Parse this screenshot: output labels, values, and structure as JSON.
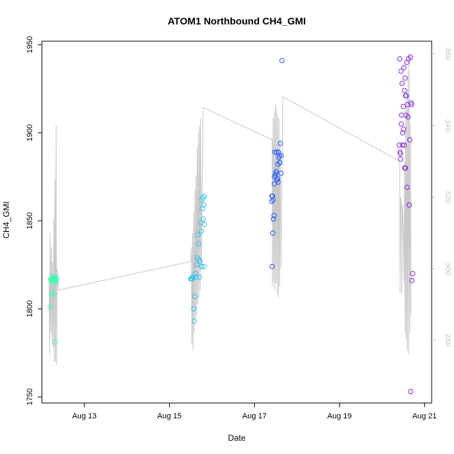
{
  "chart_data": {
    "type": "scatter",
    "title": "ATOM1 Northbound CH4_GMI",
    "xlabel": "Date",
    "ylabel": "CH4_GMI",
    "xlim": [
      "2016-08-12T00:00",
      "2016-08-21T04:00"
    ],
    "ylim": [
      1746.5,
      1952
    ],
    "y2lim": [
      262.5,
      363.5
    ],
    "x_ticks": [
      {
        "label": "Aug 13",
        "value": "2016-08-13T00:00"
      },
      {
        "label": "Aug 15",
        "value": "2016-08-15T00:00"
      },
      {
        "label": "Aug 17",
        "value": "2016-08-17T00:00"
      },
      {
        "label": "Aug 19",
        "value": "2016-08-19T00:00"
      },
      {
        "label": "Aug 21",
        "value": "2016-08-21T00:00"
      }
    ],
    "y_ticks": [
      1750,
      1800,
      1850,
      1900,
      1950
    ],
    "y2_ticks": [
      280,
      300,
      320,
      340,
      360
    ],
    "colors": {
      "secondary_line": "#c8c8c8",
      "right_axis": "#c8c8c8",
      "axis": "#000000",
      "flight1_points": "#33ffb0",
      "flight2_points": "#33bff0",
      "flight3_points": "#2a5cff",
      "flight4_points": "#8a2be2"
    },
    "series": [
      {
        "role": "points",
        "axis": "left",
        "marker": "open-circle",
        "groups": [
          {
            "color": "#33ffb0",
            "points": [
              [
                "2016-08-12T05:00",
                1817
              ],
              [
                "2016-08-12T05:20",
                1816
              ],
              [
                "2016-08-12T05:40",
                1817
              ],
              [
                "2016-08-12T06:00",
                1815
              ],
              [
                "2016-08-12T06:20",
                1818
              ],
              [
                "2016-08-12T06:40",
                1816
              ],
              [
                "2016-08-12T07:00",
                1817
              ],
              [
                "2016-08-12T04:40",
                1801
              ],
              [
                "2016-08-12T05:30",
                1808
              ],
              [
                "2016-08-12T06:10",
                1809
              ],
              [
                "2016-08-12T07:20",
                1818
              ],
              [
                "2016-08-12T07:40",
                1816
              ],
              [
                "2016-08-12T08:00",
                1815
              ],
              [
                "2016-08-12T08:20",
                1817
              ],
              [
                "2016-08-12T07:10",
                1781
              ],
              [
                "2016-08-12T06:50",
                1817
              ]
            ]
          },
          {
            "color": "#33bff0",
            "points": [
              [
                "2016-08-15T12:00",
                1817
              ],
              [
                "2016-08-15T12:20",
                1817
              ],
              [
                "2016-08-15T12:40",
                1817
              ],
              [
                "2016-08-15T13:00",
                1818
              ],
              [
                "2016-08-15T13:20",
                1818
              ],
              [
                "2016-08-15T13:40",
                1800
              ],
              [
                "2016-08-15T14:00",
                1793
              ],
              [
                "2016-08-15T14:20",
                1807
              ],
              [
                "2016-08-15T14:40",
                1820
              ],
              [
                "2016-08-15T15:00",
                1818
              ],
              [
                "2016-08-15T15:20",
                1825
              ],
              [
                "2016-08-15T15:40",
                1829
              ],
              [
                "2016-08-15T16:00",
                1842
              ],
              [
                "2016-08-15T16:20",
                1837
              ],
              [
                "2016-08-15T16:40",
                1828
              ],
              [
                "2016-08-15T17:00",
                1818
              ],
              [
                "2016-08-15T17:20",
                1827
              ],
              [
                "2016-08-15T17:40",
                1849
              ],
              [
                "2016-08-15T18:00",
                1844
              ],
              [
                "2016-08-15T18:20",
                1862
              ],
              [
                "2016-08-15T18:40",
                1857
              ],
              [
                "2016-08-15T19:00",
                1863
              ],
              [
                "2016-08-15T19:10",
                1851
              ],
              [
                "2016-08-15T19:20",
                1859
              ],
              [
                "2016-08-15T19:30",
                1824
              ],
              [
                "2016-08-15T19:40",
                1864
              ],
              [
                "2016-08-15T18:10",
                1824
              ],
              [
                "2016-08-15T19:50",
                1848
              ]
            ]
          },
          {
            "color": "#2a5cff",
            "points": [
              [
                "2016-08-17T10:00",
                1824
              ],
              [
                "2016-08-17T10:20",
                1843
              ],
              [
                "2016-08-17T10:40",
                1851
              ],
              [
                "2016-08-17T11:00",
                1853
              ],
              [
                "2016-08-17T09:40",
                1861
              ],
              [
                "2016-08-17T09:50",
                1864
              ],
              [
                "2016-08-17T10:10",
                1864
              ],
              [
                "2016-08-17T10:30",
                1862
              ],
              [
                "2016-08-17T11:10",
                1871
              ],
              [
                "2016-08-17T11:20",
                1875
              ],
              [
                "2016-08-17T11:40",
                1876
              ],
              [
                "2016-08-17T12:00",
                1877
              ],
              [
                "2016-08-17T12:20",
                1878
              ],
              [
                "2016-08-17T12:40",
                1873
              ],
              [
                "2016-08-17T13:00",
                1874
              ],
              [
                "2016-08-17T13:20",
                1872
              ],
              [
                "2016-08-17T11:30",
                1889
              ],
              [
                "2016-08-17T12:30",
                1889
              ],
              [
                "2016-08-17T13:10",
                1882
              ],
              [
                "2016-08-17T13:30",
                1889
              ],
              [
                "2016-08-17T14:00",
                1887
              ],
              [
                "2016-08-17T14:20",
                1883
              ],
              [
                "2016-08-17T14:40",
                1894
              ],
              [
                "2016-08-17T15:00",
                1877
              ],
              [
                "2016-08-17T14:10",
                1883
              ],
              [
                "2016-08-17T13:50",
                1886
              ],
              [
                "2016-08-17T15:10",
                1887
              ],
              [
                "2016-08-17T15:30",
                1941
              ]
            ]
          },
          {
            "color": "#8a2be2",
            "points": [
              [
                "2016-08-20T10:00",
                1942
              ],
              [
                "2016-08-20T10:40",
                1935
              ],
              [
                "2016-08-20T11:20",
                1928
              ],
              [
                "2016-08-20T12:20",
                1937
              ],
              [
                "2016-08-20T13:00",
                1931
              ],
              [
                "2016-08-20T14:00",
                1940
              ],
              [
                "2016-08-20T15:00",
                1942
              ],
              [
                "2016-08-20T16:00",
                1943
              ],
              [
                "2016-08-20T12:40",
                1924
              ],
              [
                "2016-08-20T13:20",
                1921
              ],
              [
                "2016-08-20T13:40",
                1921
              ],
              [
                "2016-08-20T14:20",
                1916
              ],
              [
                "2016-08-20T12:00",
                1915
              ],
              [
                "2016-08-20T11:00",
                1910
              ],
              [
                "2016-08-20T13:30",
                1910
              ],
              [
                "2016-08-20T14:40",
                1909
              ],
              [
                "2016-08-20T10:50",
                1905
              ],
              [
                "2016-08-20T12:10",
                1902
              ],
              [
                "2016-08-20T11:40",
                1900
              ],
              [
                "2016-08-20T16:20",
                1917
              ],
              [
                "2016-08-20T16:40",
                1916
              ],
              [
                "2016-08-20T09:40",
                1893
              ],
              [
                "2016-08-20T11:30",
                1893
              ],
              [
                "2016-08-20T12:30",
                1893
              ],
              [
                "2016-08-20T10:10",
                1889
              ],
              [
                "2016-08-20T10:20",
                1888
              ],
              [
                "2016-08-20T10:30",
                1885
              ],
              [
                "2016-08-20T15:40",
                1896
              ],
              [
                "2016-08-20T12:50",
                1880
              ],
              [
                "2016-08-20T13:10",
                1880
              ],
              [
                "2016-08-20T14:10",
                1869
              ],
              [
                "2016-08-20T15:20",
                1859
              ],
              [
                "2016-08-20T17:20",
                1820
              ],
              [
                "2016-08-20T16:50",
                1816
              ],
              [
                "2016-08-20T16:10",
                1753
              ]
            ]
          }
        ]
      },
      {
        "role": "line",
        "axis": "right",
        "color": "#c8c8c8",
        "points": [
          [
            "2016-08-12T04:00",
            297
          ],
          [
            "2016-08-12T04:20",
            276
          ],
          [
            "2016-08-12T04:40",
            310
          ],
          [
            "2016-08-12T05:00",
            282
          ],
          [
            "2016-08-12T05:20",
            306
          ],
          [
            "2016-08-12T05:40",
            280
          ],
          [
            "2016-08-12T06:00",
            302
          ],
          [
            "2016-08-12T06:20",
            278
          ],
          [
            "2016-08-12T06:40",
            314
          ],
          [
            "2016-08-12T07:00",
            274
          ],
          [
            "2016-08-12T07:20",
            325
          ],
          [
            "2016-08-12T07:40",
            274
          ],
          [
            "2016-08-12T08:00",
            340
          ],
          [
            "2016-08-12T08:20",
            273
          ],
          [
            "2016-08-12T08:40",
            300
          ],
          [
            "2016-08-12T09:20",
            294
          ],
          [
            "2016-08-15T12:00",
            302
          ],
          [
            "2016-08-15T12:20",
            306
          ],
          [
            "2016-08-15T12:40",
            279
          ],
          [
            "2016-08-15T13:00",
            310
          ],
          [
            "2016-08-15T13:20",
            277
          ],
          [
            "2016-08-15T13:40",
            316
          ],
          [
            "2016-08-15T14:00",
            282
          ],
          [
            "2016-08-15T14:20",
            322
          ],
          [
            "2016-08-15T14:40",
            286
          ],
          [
            "2016-08-15T15:00",
            326
          ],
          [
            "2016-08-15T15:20",
            287
          ],
          [
            "2016-08-15T15:40",
            334
          ],
          [
            "2016-08-15T16:00",
            290
          ],
          [
            "2016-08-15T16:20",
            338
          ],
          [
            "2016-08-15T16:40",
            292
          ],
          [
            "2016-08-15T17:00",
            340
          ],
          [
            "2016-08-15T17:20",
            294
          ],
          [
            "2016-08-15T17:40",
            342
          ],
          [
            "2016-08-15T18:00",
            300
          ],
          [
            "2016-08-15T19:00",
            345
          ],
          [
            "2016-08-17T10:00",
            336
          ],
          [
            "2016-08-17T10:10",
            295
          ],
          [
            "2016-08-17T10:30",
            342
          ],
          [
            "2016-08-17T10:50",
            296
          ],
          [
            "2016-08-17T11:10",
            344
          ],
          [
            "2016-08-17T11:30",
            294
          ],
          [
            "2016-08-17T11:50",
            346
          ],
          [
            "2016-08-17T12:10",
            296
          ],
          [
            "2016-08-17T12:30",
            345
          ],
          [
            "2016-08-17T12:50",
            293
          ],
          [
            "2016-08-17T13:10",
            343
          ],
          [
            "2016-08-17T13:30",
            292
          ],
          [
            "2016-08-17T13:50",
            342
          ],
          [
            "2016-08-17T14:10",
            295
          ],
          [
            "2016-08-17T14:30",
            336
          ],
          [
            "2016-08-17T15:00",
            300
          ],
          [
            "2016-08-17T16:00",
            348
          ],
          [
            "2016-08-20T10:00",
            330
          ],
          [
            "2016-08-20T10:10",
            293
          ],
          [
            "2016-08-20T10:30",
            320
          ],
          [
            "2016-08-20T11:00",
            316
          ],
          [
            "2016-08-20T11:10",
            293
          ],
          [
            "2016-08-20T11:30",
            318
          ],
          [
            "2016-08-20T12:00",
            310
          ],
          [
            "2016-08-20T12:20",
            296
          ],
          [
            "2016-08-20T12:40",
            330
          ],
          [
            "2016-08-20T13:00",
            282
          ],
          [
            "2016-08-20T13:20",
            345
          ],
          [
            "2016-08-20T13:40",
            280
          ],
          [
            "2016-08-20T14:00",
            350
          ],
          [
            "2016-08-20T14:20",
            277
          ],
          [
            "2016-08-20T14:40",
            355
          ],
          [
            "2016-08-20T15:00",
            276
          ],
          [
            "2016-08-20T15:20",
            360
          ],
          [
            "2016-08-20T15:40",
            282
          ],
          [
            "2016-08-20T16:00",
            340
          ],
          [
            "2016-08-20T16:20",
            287
          ]
        ]
      }
    ]
  }
}
